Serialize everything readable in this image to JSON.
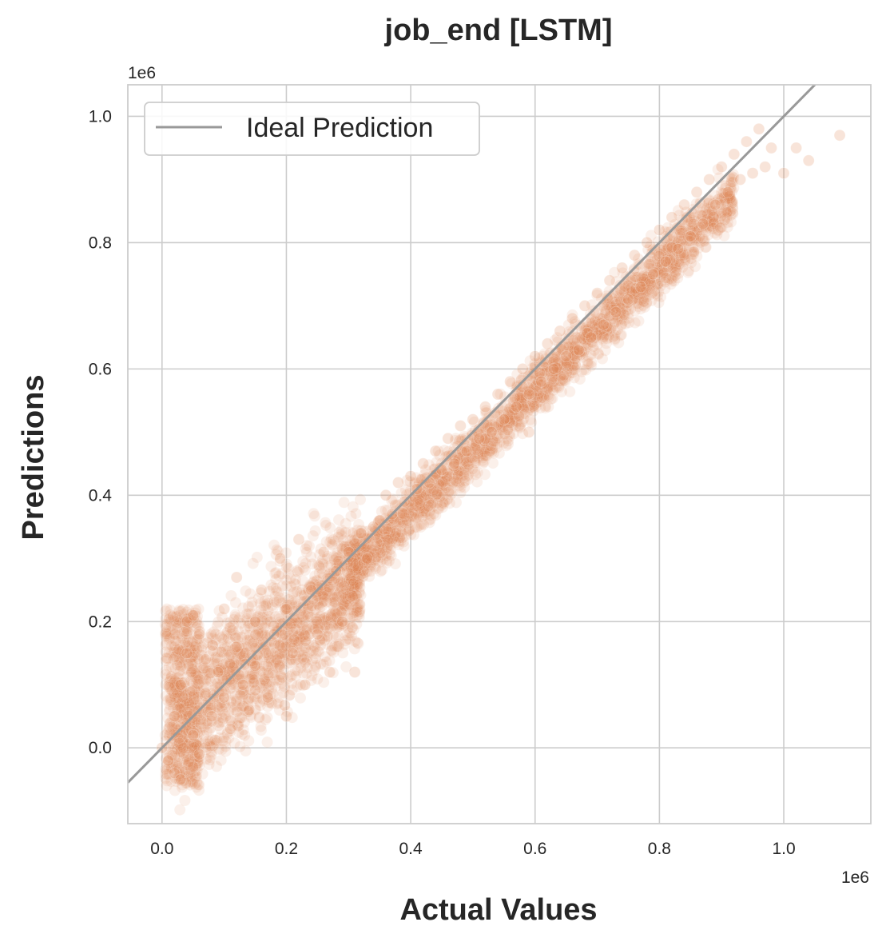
{
  "chart_data": {
    "type": "scatter",
    "title": "job_end [LSTM]",
    "xlabel": "Actual Values",
    "ylabel": "Predictions",
    "x_offset_label": "1e6",
    "y_offset_label": "1e6",
    "xlim": [
      -0.055,
      1.14
    ],
    "ylim": [
      -0.12,
      1.05
    ],
    "xticks": [
      0.0,
      0.2,
      0.4,
      0.6,
      0.8,
      1.0
    ],
    "yticks": [
      0.0,
      0.2,
      0.4,
      0.6,
      0.8,
      1.0
    ],
    "xtick_labels": [
      "0.0",
      "0.2",
      "0.4",
      "0.6",
      "0.8",
      "1.0"
    ],
    "ytick_labels": [
      "0.0",
      "0.2",
      "0.4",
      "0.6",
      "0.8",
      "1.0"
    ],
    "grid": true,
    "legend": {
      "placement": "top-left",
      "entries": [
        "Ideal Prediction"
      ]
    },
    "series": [
      {
        "kind": "scatter",
        "color": "#dd8452",
        "alpha": 0.12,
        "points": [
          [
            0.0,
            0.0
          ],
          [
            0.01,
            -0.02
          ],
          [
            0.02,
            0.05
          ],
          [
            0.02,
            -0.04
          ],
          [
            0.03,
            0.1
          ],
          [
            0.03,
            -0.05
          ],
          [
            0.04,
            0.15
          ],
          [
            0.04,
            0.2
          ],
          [
            0.05,
            0.21
          ],
          [
            0.05,
            0.02
          ],
          [
            0.06,
            0.18
          ],
          [
            0.06,
            -0.01
          ],
          [
            0.07,
            0.14
          ],
          [
            0.08,
            0.05
          ],
          [
            0.09,
            0.12
          ],
          [
            0.1,
            0.08
          ],
          [
            0.1,
            0.22
          ],
          [
            0.11,
            0.03
          ],
          [
            0.12,
            0.16
          ],
          [
            0.12,
            0.27
          ],
          [
            0.13,
            0.1
          ],
          [
            0.14,
            0.06
          ],
          [
            0.15,
            0.2
          ],
          [
            0.15,
            0.13
          ],
          [
            0.16,
            0.25
          ],
          [
            0.17,
            0.08
          ],
          [
            0.18,
            0.18
          ],
          [
            0.19,
            0.3
          ],
          [
            0.2,
            0.05
          ],
          [
            0.2,
            0.22
          ],
          [
            0.21,
            0.15
          ],
          [
            0.22,
            0.33
          ],
          [
            0.23,
            0.1
          ],
          [
            0.24,
            0.25
          ],
          [
            0.25,
            0.18
          ],
          [
            0.26,
            0.31
          ],
          [
            0.27,
            0.12
          ],
          [
            0.28,
            0.28
          ],
          [
            0.29,
            0.2
          ],
          [
            0.3,
            0.31
          ],
          [
            0.31,
            0.12
          ],
          [
            0.32,
            0.34
          ],
          [
            0.33,
            0.3
          ],
          [
            0.34,
            0.35
          ],
          [
            0.35,
            0.36
          ],
          [
            0.36,
            0.4
          ],
          [
            0.37,
            0.37
          ],
          [
            0.38,
            0.42
          ],
          [
            0.39,
            0.39
          ],
          [
            0.4,
            0.43
          ],
          [
            0.41,
            0.41
          ],
          [
            0.42,
            0.45
          ],
          [
            0.43,
            0.42
          ],
          [
            0.44,
            0.47
          ],
          [
            0.45,
            0.44
          ],
          [
            0.46,
            0.49
          ],
          [
            0.47,
            0.45
          ],
          [
            0.48,
            0.51
          ],
          [
            0.49,
            0.47
          ],
          [
            0.5,
            0.52
          ],
          [
            0.51,
            0.49
          ],
          [
            0.52,
            0.54
          ],
          [
            0.53,
            0.5
          ],
          [
            0.54,
            0.56
          ],
          [
            0.55,
            0.52
          ],
          [
            0.56,
            0.58
          ],
          [
            0.57,
            0.54
          ],
          [
            0.58,
            0.6
          ],
          [
            0.59,
            0.56
          ],
          [
            0.59,
            0.5
          ],
          [
            0.6,
            0.62
          ],
          [
            0.61,
            0.58
          ],
          [
            0.62,
            0.64
          ],
          [
            0.63,
            0.6
          ],
          [
            0.64,
            0.66
          ],
          [
            0.65,
            0.62
          ],
          [
            0.66,
            0.68
          ],
          [
            0.67,
            0.63
          ],
          [
            0.68,
            0.7
          ],
          [
            0.69,
            0.65
          ],
          [
            0.7,
            0.72
          ],
          [
            0.71,
            0.67
          ],
          [
            0.72,
            0.74
          ],
          [
            0.73,
            0.69
          ],
          [
            0.74,
            0.76
          ],
          [
            0.75,
            0.71
          ],
          [
            0.76,
            0.78
          ],
          [
            0.77,
            0.73
          ],
          [
            0.78,
            0.8
          ],
          [
            0.79,
            0.75
          ],
          [
            0.8,
            0.82
          ],
          [
            0.81,
            0.77
          ],
          [
            0.82,
            0.84
          ],
          [
            0.83,
            0.79
          ],
          [
            0.84,
            0.86
          ],
          [
            0.85,
            0.81
          ],
          [
            0.86,
            0.88
          ],
          [
            0.87,
            0.83
          ],
          [
            0.88,
            0.9
          ],
          [
            0.89,
            0.86
          ],
          [
            0.9,
            0.92
          ],
          [
            0.91,
            0.88
          ],
          [
            0.92,
            0.94
          ],
          [
            0.93,
            0.9
          ],
          [
            0.94,
            0.96
          ],
          [
            0.95,
            0.91
          ],
          [
            0.96,
            0.98
          ],
          [
            0.97,
            0.92
          ],
          [
            0.98,
            0.95
          ],
          [
            1.0,
            0.91
          ],
          [
            1.02,
            0.95
          ],
          [
            1.04,
            0.93
          ],
          [
            1.09,
            0.97
          ]
        ]
      }
    ],
    "reference_line": {
      "name": "Ideal Prediction",
      "slope": 1,
      "intercept": 0,
      "color": "#999999"
    }
  }
}
